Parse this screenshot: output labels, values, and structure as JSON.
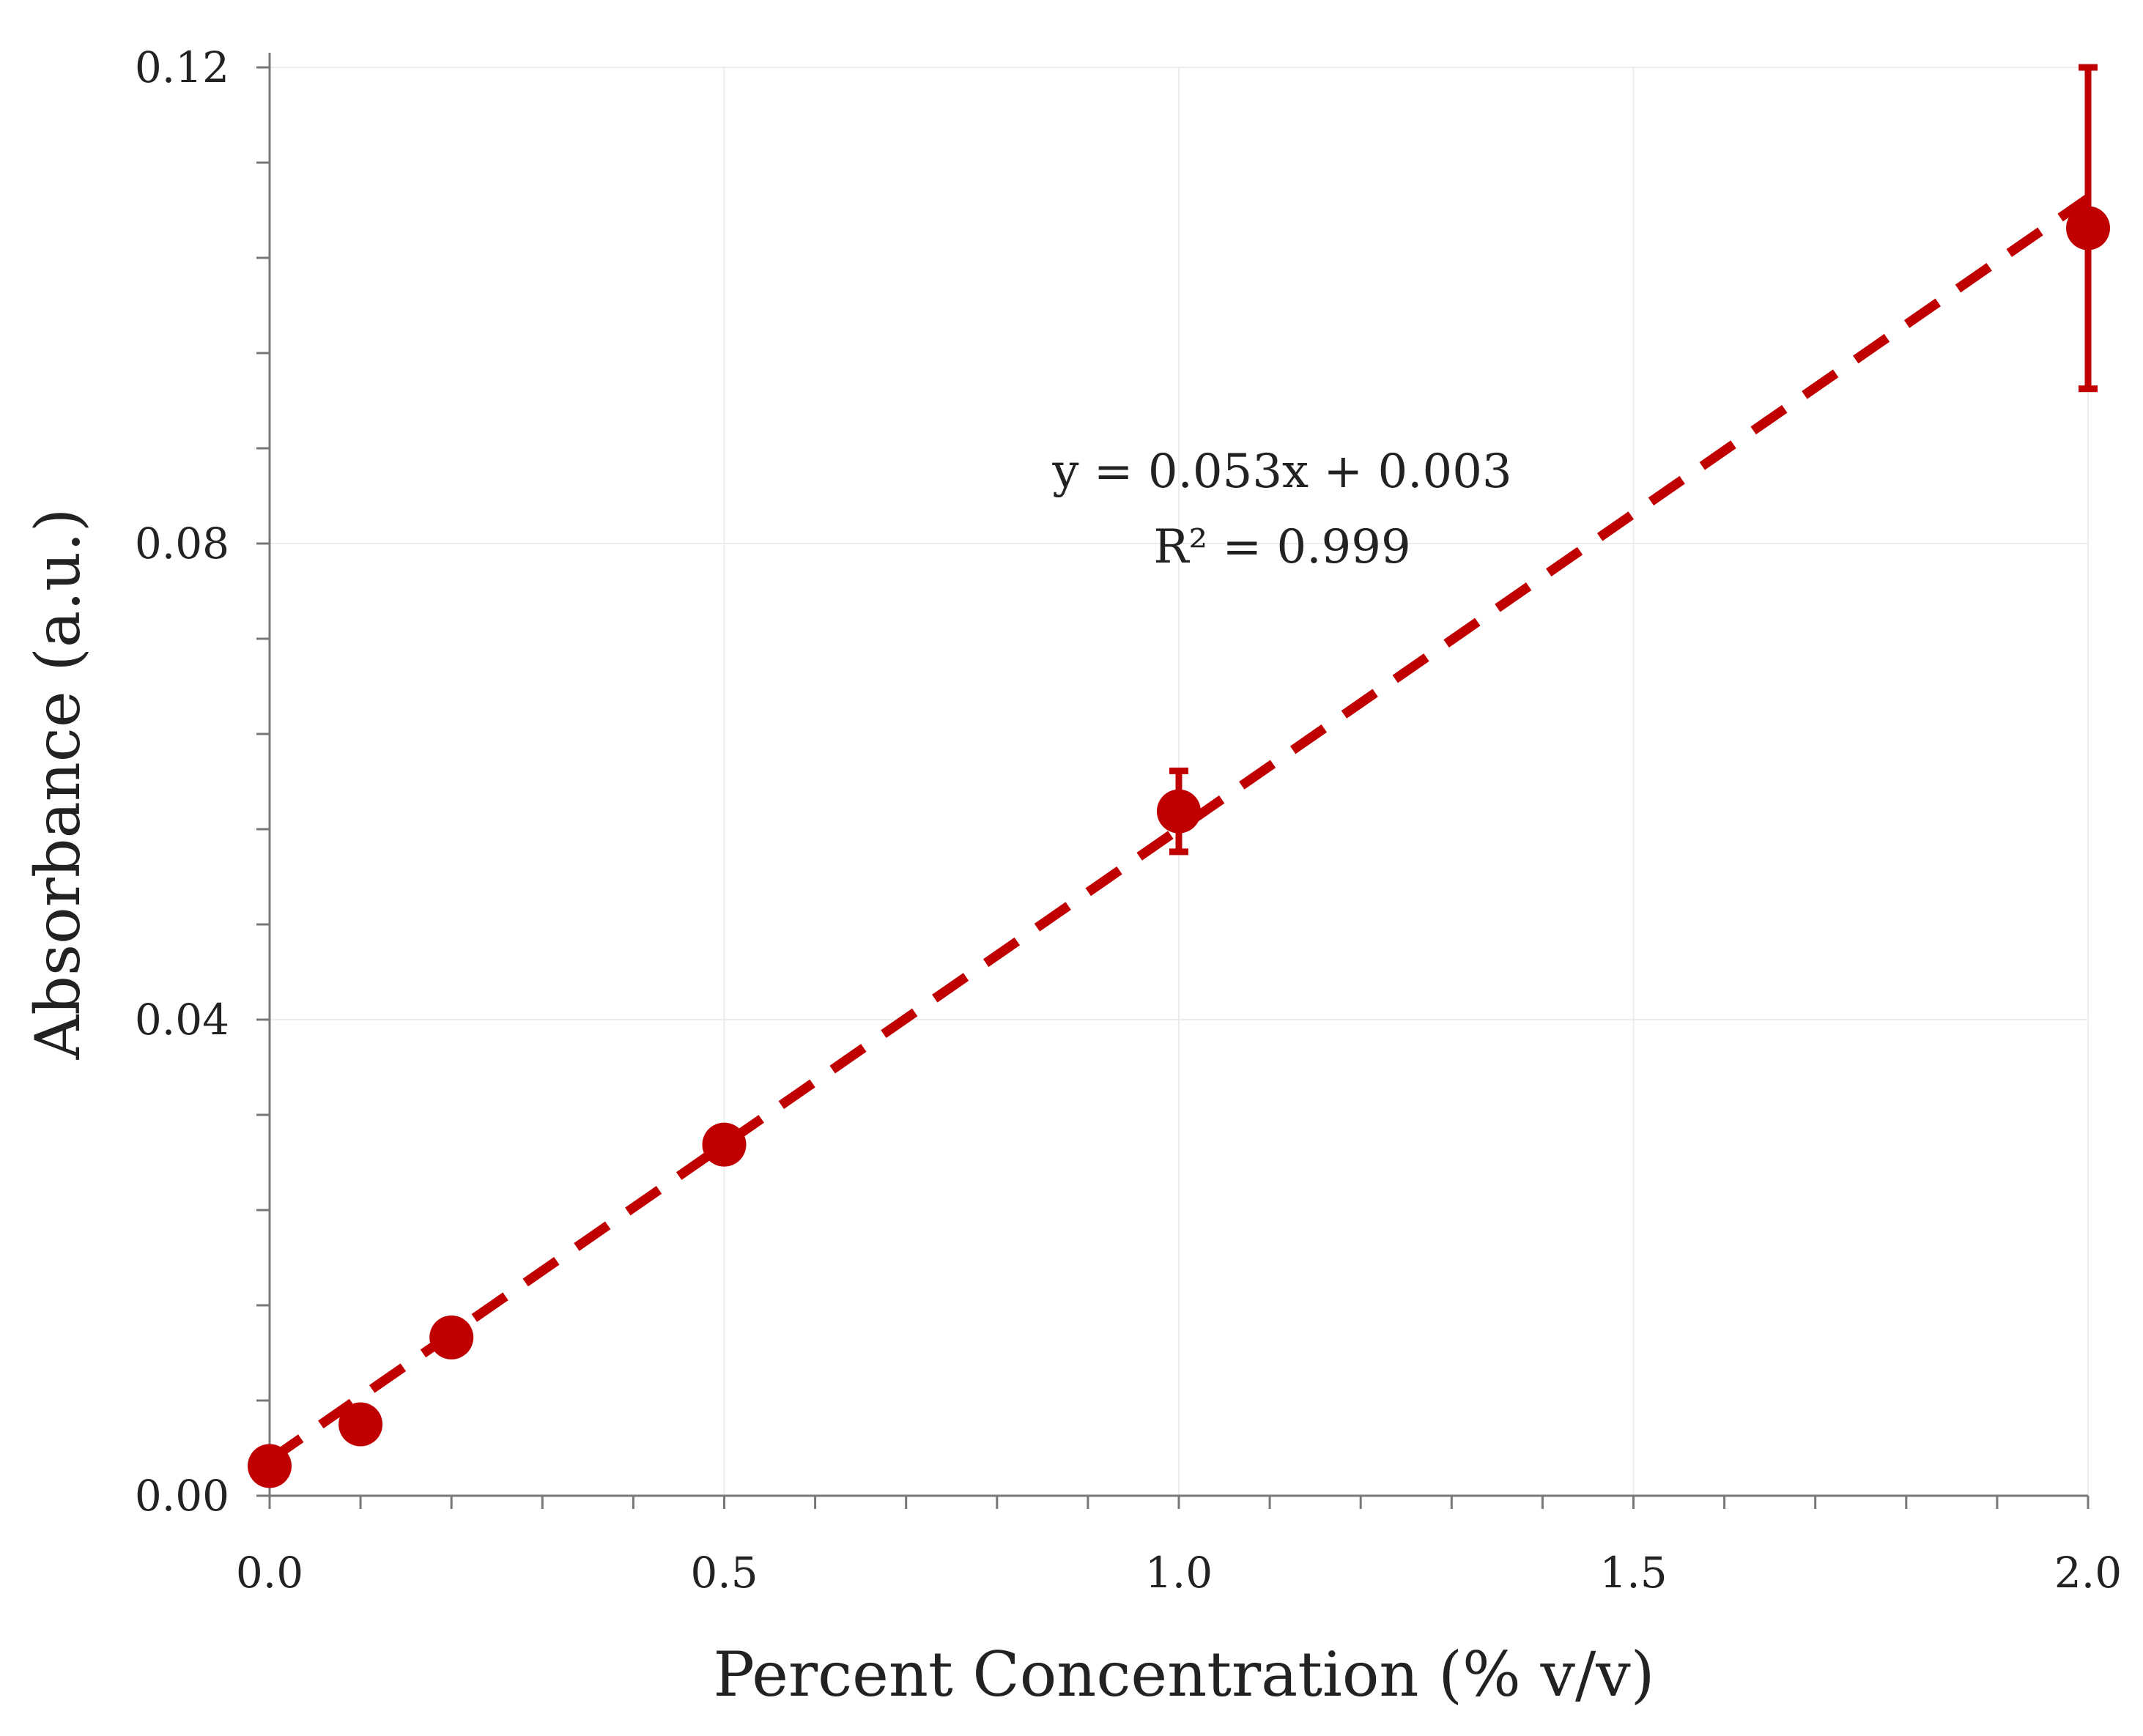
{
  "chart_data": {
    "type": "scatter",
    "title": "",
    "xlabel": "Percent Concentration (% v/v)",
    "ylabel": "Absorbance  (a.u.)",
    "xlim": [
      0,
      2.0
    ],
    "ylim": [
      0,
      0.12
    ],
    "x_ticks": [
      0.0,
      0.5,
      1.0,
      1.5,
      2.0
    ],
    "x_tick_labels": [
      "0.0",
      "0.5",
      "1.0",
      "1.5",
      "2.0"
    ],
    "x_minor_step": 0.1,
    "y_ticks": [
      0.0,
      0.04,
      0.08,
      0.12
    ],
    "y_tick_labels": [
      "0.00",
      "0.04",
      "0.08",
      "0.12"
    ],
    "y_minor_step": 0.008,
    "grid": true,
    "series": [
      {
        "name": "Absorbance",
        "color": "#c00000",
        "x": [
          0.0,
          0.1,
          0.2,
          0.5,
          1.0,
          2.0
        ],
        "y": [
          0.0025,
          0.006,
          0.0133,
          0.0295,
          0.0575,
          0.1065
        ],
        "error": [
          0.0,
          0.0,
          0.0014,
          0.0,
          0.0034,
          0.0135
        ]
      }
    ],
    "trendline": {
      "slope": 0.053,
      "intercept": 0.003,
      "x_range": [
        0.0,
        2.0
      ],
      "style": "dashed",
      "color": "#c00000"
    },
    "annotations": {
      "equation": "y = 0.053x + 0.003",
      "r_squared": "R² = 0.999"
    }
  }
}
